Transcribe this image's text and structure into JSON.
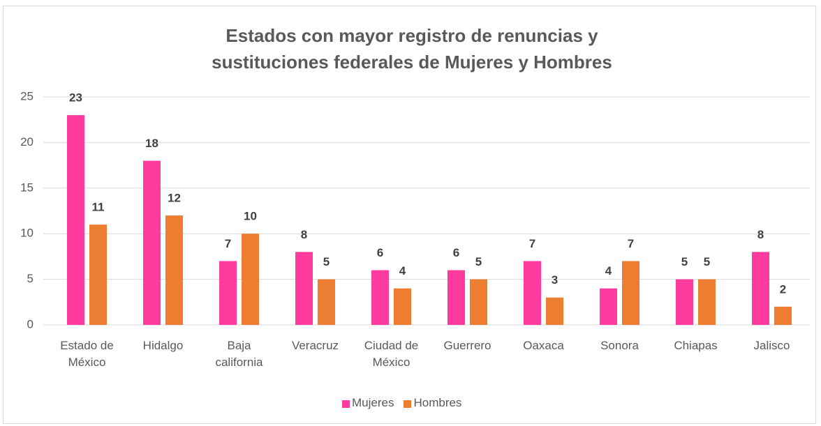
{
  "chart_data": {
    "type": "bar",
    "title": "Estados con mayor registro de renuncias  y sustituciones federales de Mujeres y Hombres",
    "categories": [
      "Estado de México",
      "Hidalgo",
      "Baja california",
      "Veracruz",
      "Ciudad de México",
      "Guerrero",
      "Oaxaca",
      "Sonora",
      "Chiapas",
      "Jalisco"
    ],
    "series": [
      {
        "name": "Mujeres",
        "color": "#ff3ba0",
        "values": [
          23,
          18,
          7,
          8,
          6,
          6,
          7,
          4,
          5,
          8
        ]
      },
      {
        "name": "Hombres",
        "color": "#ed7d31",
        "values": [
          11,
          12,
          10,
          5,
          4,
          5,
          3,
          7,
          5,
          2
        ]
      }
    ],
    "ylim": [
      0,
      25
    ],
    "yticks": [
      0,
      5,
      10,
      15,
      20,
      25
    ],
    "grid": true,
    "legend": "bottom"
  }
}
